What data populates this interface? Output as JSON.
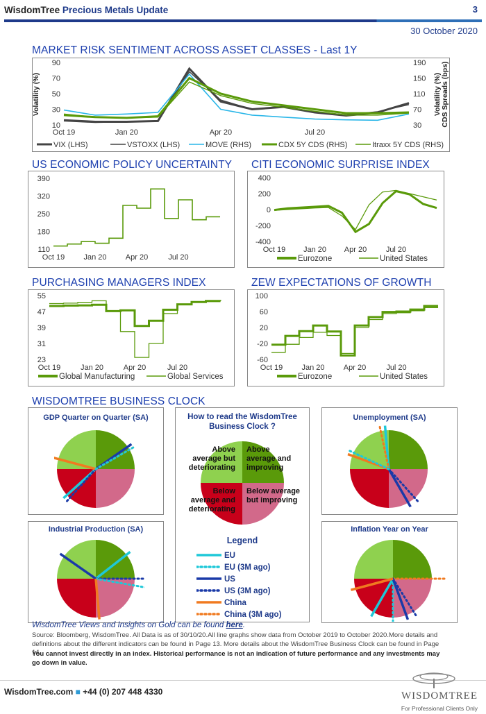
{
  "header": {
    "brand": "WisdomTree",
    "title": "Precious Metals Update",
    "page": "3",
    "date": "30 October 2020"
  },
  "sections": {
    "risk": "MARKET RISK SENTIMENT ACROSS ASSET CLASSES - Last 1Y",
    "epu": "US ECONOMIC POLICY UNCERTAINTY",
    "citi": "CITI ECONOMIC SURPRISE INDEX",
    "pmi": "PURCHASING MANAGERS INDEX",
    "zew": "ZEW EXPECTATIONS OF GROWTH",
    "clock": "WISDOMTREE BUSINESS CLOCK"
  },
  "colors": {
    "navy": "#1e3a8a",
    "green": "#5a9a0a",
    "lightgreen": "#8fd14f",
    "pink": "#d2698a",
    "red": "#c8001a",
    "cyan": "#1ec8d8",
    "blue": "#1a3aa8",
    "orange": "#f07a20"
  },
  "chart_data": [
    {
      "type": "line",
      "title": "MARKET RISK SENTIMENT ACROSS ASSET CLASSES - Last 1Y",
      "ylabel": "Volatility (%)",
      "y2label": "Volatility (%) CDS Spreads (bps)",
      "ylim": [
        10,
        90
      ],
      "y2lim": [
        30,
        190
      ],
      "yticks": [
        "90",
        "70",
        "50",
        "30",
        "10"
      ],
      "y2ticks": [
        "190",
        "150",
        "110",
        "70",
        "30"
      ],
      "xticks": [
        "Oct 19",
        "Jan 20",
        "Apr 20",
        "Jul 20"
      ],
      "x": [
        "Oct 19",
        "Dec 19",
        "Jan 20",
        "Feb 20",
        "Mar 20",
        "Apr 20",
        "May 20",
        "Jun 20",
        "Jul 20",
        "Aug 20",
        "Sep 20",
        "Oct 20"
      ],
      "series": [
        {
          "name": "VIX (LHS)",
          "values": [
            16,
            14,
            14,
            15,
            82,
            40,
            30,
            33,
            26,
            22,
            26,
            38
          ]
        },
        {
          "name": "VSTOXX (LHS)",
          "values": [
            15,
            13,
            14,
            15,
            78,
            42,
            30,
            33,
            27,
            23,
            27,
            36
          ]
        },
        {
          "name": "MOVE (RHS)",
          "values": [
            68,
            55,
            58,
            62,
            160,
            70,
            55,
            50,
            45,
            43,
            42,
            58
          ]
        },
        {
          "name": "CDX 5Y CDS (RHS)",
          "values": [
            55,
            50,
            48,
            52,
            150,
            110,
            90,
            80,
            70,
            60,
            60,
            62
          ]
        },
        {
          "name": "Itraxx 5Y CDS (RHS)",
          "values": [
            58,
            50,
            48,
            50,
            140,
            105,
            85,
            75,
            65,
            55,
            55,
            60
          ]
        }
      ]
    },
    {
      "type": "line",
      "title": "US ECONOMIC POLICY UNCERTAINTY",
      "ylim": [
        110,
        390
      ],
      "yticks": [
        "390",
        "320",
        "250",
        "180",
        "110"
      ],
      "xticks": [
        "Oct 19",
        "Jan 20",
        "Apr 20",
        "Jul 20"
      ],
      "x": [
        "Oct 19",
        "Nov 19",
        "Dec 19",
        "Jan 20",
        "Feb 20",
        "Mar 20",
        "Apr 20",
        "May 20",
        "Jun 20",
        "Jul 20",
        "Aug 20",
        "Sep 20",
        "Oct 20"
      ],
      "values": [
        122,
        130,
        140,
        133,
        153,
        283,
        272,
        348,
        231,
        305,
        226,
        238,
        238
      ]
    },
    {
      "type": "line",
      "title": "CITI ECONOMIC SURPRISE INDEX",
      "ylim": [
        -400,
        400
      ],
      "yticks": [
        "400",
        "200",
        "0",
        "-200",
        "-400"
      ],
      "xticks": [
        "Oct 19",
        "Jan 20",
        "Apr 20",
        "Jul 20"
      ],
      "x": [
        "Oct 19",
        "Nov 19",
        "Dec 19",
        "Jan 20",
        "Feb 20",
        "Mar 20",
        "Apr 20",
        "May 20",
        "Jun 20",
        "Jul 20",
        "Aug 20",
        "Sep 20",
        "Oct 20"
      ],
      "series": [
        {
          "name": "Eurozone",
          "values": [
            -5,
            15,
            25,
            35,
            45,
            -40,
            -280,
            -180,
            80,
            230,
            190,
            70,
            20
          ]
        },
        {
          "name": "United States",
          "values": [
            -10,
            0,
            10,
            20,
            25,
            -80,
            -250,
            60,
            220,
            240,
            200,
            160,
            120
          ]
        }
      ]
    },
    {
      "type": "line",
      "title": "PURCHASING MANAGERS INDEX",
      "ylim": [
        23,
        55
      ],
      "yticks": [
        "55",
        "47",
        "39",
        "31",
        "23"
      ],
      "xticks": [
        "Oct 19",
        "Jan 20",
        "Apr 20",
        "Jul 20"
      ],
      "x": [
        "Oct 19",
        "Nov 19",
        "Dec 19",
        "Jan 20",
        "Feb 20",
        "Mar 20",
        "Apr 20",
        "May 20",
        "Jun 20",
        "Jul 20",
        "Aug 20",
        "Sep 20",
        "Oct 20"
      ],
      "series": [
        {
          "name": "Global Manufacturing",
          "values": [
            49.8,
            50.0,
            50.1,
            50.4,
            47.2,
            47.6,
            39.8,
            42.4,
            47.9,
            50.6,
            51.8,
            52.3,
            52.2
          ]
        },
        {
          "name": "Global Services",
          "values": [
            51.0,
            51.2,
            51.6,
            52.4,
            47.1,
            37.0,
            24.0,
            31.0,
            46.0,
            50.5,
            51.9,
            52.0,
            52.5
          ]
        }
      ]
    },
    {
      "type": "line",
      "title": "ZEW EXPECTATIONS OF GROWTH",
      "ylim": [
        -60,
        100
      ],
      "yticks": [
        "100",
        "60",
        "20",
        "-20",
        "-60"
      ],
      "xticks": [
        "Oct 19",
        "Jan 20",
        "Apr 20",
        "Jul 20"
      ],
      "x": [
        "Oct 19",
        "Nov 19",
        "Dec 19",
        "Jan 20",
        "Feb 20",
        "Mar 20",
        "Apr 20",
        "May 20",
        "Jun 20",
        "Jul 20",
        "Aug 20",
        "Sep 20",
        "Oct 20"
      ],
      "series": [
        {
          "name": "Eurozone",
          "values": [
            -23,
            -1,
            11,
            25,
            10,
            -50,
            25,
            46,
            59,
            60,
            65,
            74,
            74
          ]
        },
        {
          "name": "United States",
          "values": [
            -42,
            -22,
            -5,
            8,
            0,
            -45,
            20,
            40,
            55,
            57,
            62,
            70,
            70
          ]
        }
      ]
    }
  ],
  "clock": {
    "panels": {
      "gdp": "GDP Quarter on Quarter (SA)",
      "ind": "Industrial Production (SA)",
      "unemp": "Unemployment (SA)",
      "infl": "Inflation Year on Year"
    },
    "howto": {
      "title": "How to read the WisdomTree Business Clock ?",
      "q1": "Above average but deteriorating",
      "q2": "Above average and improving",
      "q3": "Below average and deteriorating",
      "q4": "Below average but improving"
    },
    "legend_title": "Legend",
    "legend": [
      "EU",
      "EU (3M ago)",
      "US",
      "US (3M ago)",
      "China",
      "China (3M ago)"
    ]
  },
  "footer": {
    "italic": "WisdomTree Views and Insights on Gold can be found",
    "link": "here",
    "source": "Source: Bloomberg, WisdomTree. All Data is as of 30/10/20.All line graphs show data from October 2019 to October 2020.More details and definitions about the different indicators can be found in Page 13. More details about the WisdomTree Business Clock can be found in Page 14.",
    "disclaimer": "You cannot invest directly in an index. Historical performance is not an indication of future performance and any investments may go down in value.",
    "site": "WisdomTree.com",
    "phone": "+44 (0) 207 448 4330",
    "logo": "WISDOMTREE",
    "professional": "For Professional Clients Only"
  }
}
